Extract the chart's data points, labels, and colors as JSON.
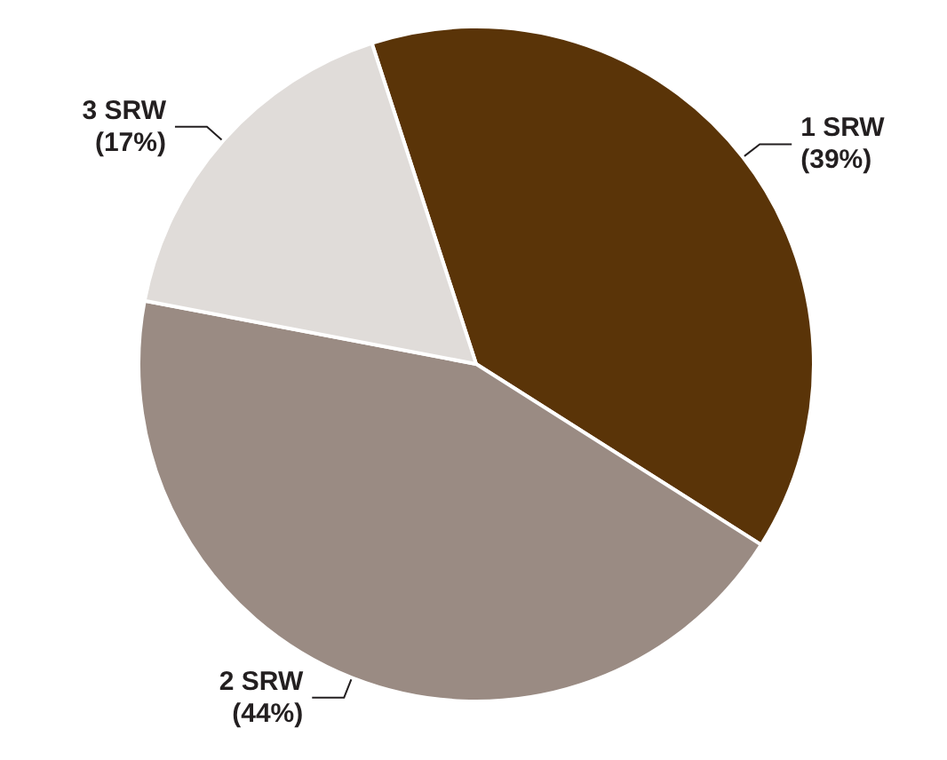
{
  "chart_data": {
    "type": "pie",
    "categories": [
      "1 SRW",
      "2 SRW",
      "3 SRW"
    ],
    "values": [
      39,
      44,
      17
    ],
    "value_labels": [
      "(39%)",
      "(44%)",
      "(17%)"
    ],
    "colors": [
      "#5a3408",
      "#9a8b83",
      "#e0dcd9"
    ]
  }
}
